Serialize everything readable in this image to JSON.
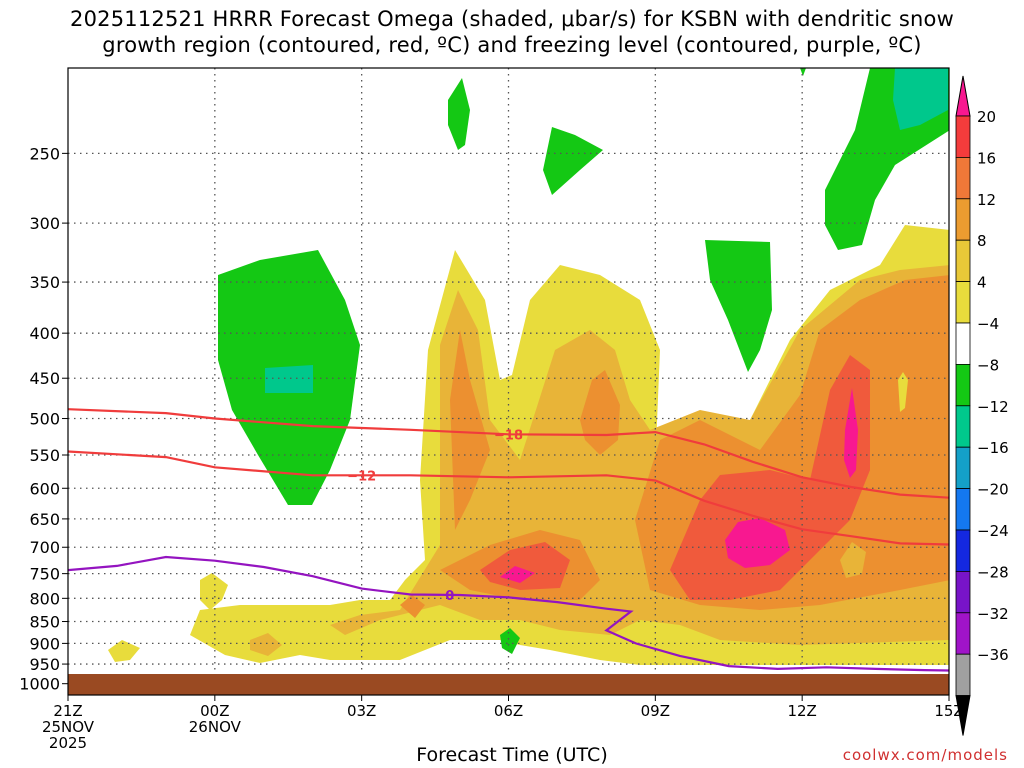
{
  "chart_data": {
    "type": "heatmap",
    "title_line1": "2025112521 HRRR Forecast Omega (shaded, μbar/s) for KSBN with dendritic snow",
    "title_line2": "growth region (contoured, red, ºC) and freezing level (contoured, purple, ºC)",
    "xlabel": "Forecast Time (UTC)",
    "credit": "coolwx.com/models",
    "x_range_hours": [
      0,
      18
    ],
    "x_ticks": [
      {
        "hour": 0,
        "lines": [
          "21Z",
          "25NOV",
          "2025"
        ]
      },
      {
        "hour": 3,
        "lines": [
          "00Z",
          "26NOV"
        ]
      },
      {
        "hour": 6,
        "lines": [
          "03Z"
        ]
      },
      {
        "hour": 9,
        "lines": [
          "06Z"
        ]
      },
      {
        "hour": 12,
        "lines": [
          "09Z"
        ]
      },
      {
        "hour": 15,
        "lines": [
          "12Z"
        ]
      },
      {
        "hour": 18,
        "lines": [
          "15Z"
        ]
      }
    ],
    "y_scale": "log-pressure",
    "y_range_hpa": [
      1030,
      200
    ],
    "y_ticks": [
      250,
      300,
      350,
      400,
      450,
      500,
      550,
      600,
      650,
      700,
      750,
      800,
      850,
      900,
      950,
      1000
    ],
    "ground_level_hpa": 975,
    "colorbar": {
      "labels": [
        "20",
        "16",
        "12",
        "8",
        "4",
        "−4",
        "−8",
        "−12",
        "−16",
        "−20",
        "−24",
        "−28",
        "−32",
        "−36"
      ],
      "colors_top_to_bottom": [
        "#f81890",
        "#f43c3c",
        "#f07838",
        "#ec9c30",
        "#e8c838",
        "#e8dc3c",
        "#ffffff",
        "#14c814",
        "#00c88c",
        "#14a0c8",
        "#1478f0",
        "#1428e0",
        "#7814c8",
        "#a014c8",
        "#a0a0a0",
        "#000000"
      ]
    },
    "shading_colors": {
      "w4": "#e8dc3c",
      "w8": "#e8b438",
      "w12": "#ec9030",
      "w16": "#f05a3c",
      "w20": "#f81890",
      "g4": "#14c814",
      "g8": "#00c88c",
      "ground": "#9a4a22"
    },
    "contours": [
      {
        "label": "−18",
        "color": "#f03c3c",
        "points": [
          [
            0,
            488
          ],
          [
            2,
            493
          ],
          [
            3,
            500
          ],
          [
            5,
            510
          ],
          [
            7,
            515
          ],
          [
            9,
            521
          ],
          [
            11,
            522
          ],
          [
            12,
            518
          ],
          [
            13,
            535
          ],
          [
            14,
            560
          ],
          [
            15,
            583
          ],
          [
            16,
            598
          ],
          [
            17,
            610
          ],
          [
            18,
            615
          ]
        ]
      },
      {
        "label": "−12",
        "color": "#f03c3c",
        "points": [
          [
            0,
            545
          ],
          [
            2,
            553
          ],
          [
            3,
            568
          ],
          [
            5,
            580
          ],
          [
            7,
            580
          ],
          [
            9,
            583
          ],
          [
            11,
            580
          ],
          [
            12,
            588
          ],
          [
            13,
            620
          ],
          [
            14,
            645
          ],
          [
            15,
            668
          ],
          [
            16,
            680
          ],
          [
            17,
            693
          ],
          [
            18,
            695
          ]
        ]
      },
      {
        "label": "0",
        "color": "#9414c0",
        "points": [
          [
            0,
            743
          ],
          [
            1,
            735
          ],
          [
            2,
            718
          ],
          [
            3,
            725
          ],
          [
            4,
            737
          ],
          [
            5,
            755
          ],
          [
            6,
            780
          ],
          [
            7,
            792
          ],
          [
            8,
            793
          ],
          [
            9,
            798
          ],
          [
            10,
            808
          ],
          [
            11,
            822
          ],
          [
            11.5,
            828
          ],
          [
            11,
            870
          ],
          [
            11.6,
            900
          ],
          [
            12.5,
            930
          ],
          [
            13.5,
            955
          ],
          [
            14.5,
            962
          ],
          [
            15.5,
            958
          ],
          [
            16.5,
            962
          ],
          [
            17.5,
            965
          ],
          [
            18,
            966
          ]
        ]
      }
    ],
    "contour_labels": [
      {
        "text": "−18",
        "hour": 9,
        "hpa": 521
      },
      {
        "text": "−12",
        "hour": 6,
        "hpa": 580
      },
      {
        "text": "0",
        "hour": 7.8,
        "hpa": 793
      }
    ]
  }
}
